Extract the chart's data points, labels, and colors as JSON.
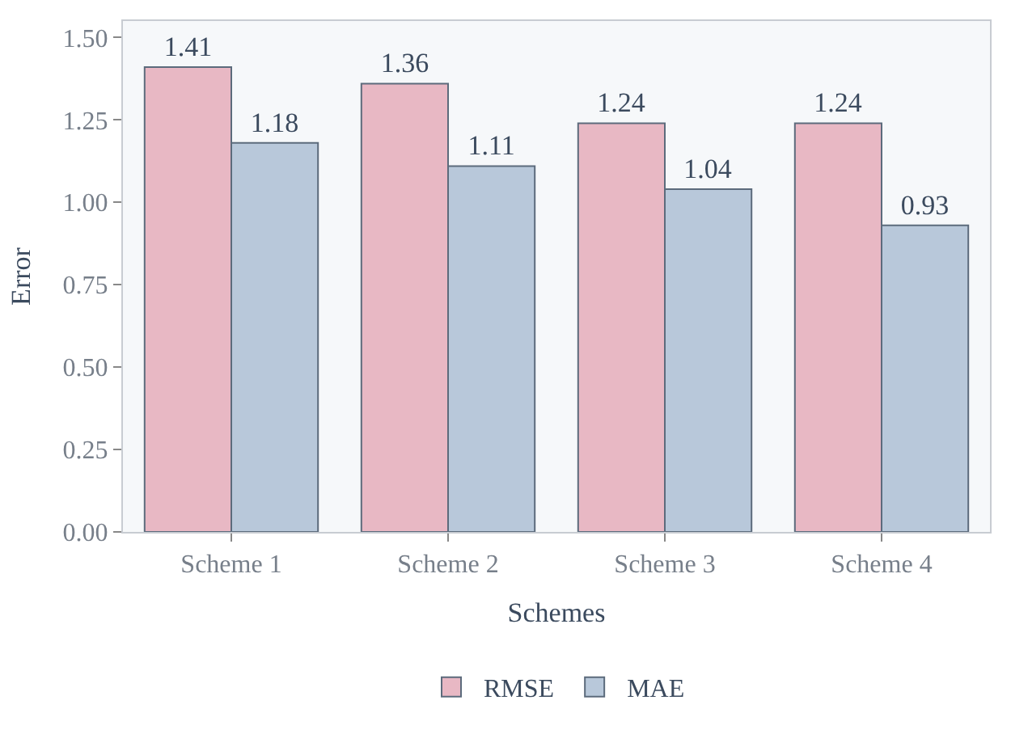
{
  "chart_data": {
    "type": "bar",
    "xlabel": "Schemes",
    "ylabel": "Error",
    "categories": [
      "Scheme 1",
      "Scheme 2",
      "Scheme 3",
      "Scheme 4"
    ],
    "series": [
      {
        "name": "RMSE",
        "color": "#e8b8c4",
        "values": [
          1.41,
          1.36,
          1.24,
          1.24
        ]
      },
      {
        "name": "MAE",
        "color": "#b8c8da",
        "values": [
          1.18,
          1.11,
          1.04,
          0.93
        ]
      }
    ],
    "ylim": [
      0,
      1.55
    ],
    "yticks": [
      {
        "value": 0,
        "label": "0.00"
      },
      {
        "value": 0.25,
        "label": "0.25"
      },
      {
        "value": 0.5,
        "label": "0.50"
      },
      {
        "value": 0.75,
        "label": "0.75"
      },
      {
        "value": 1,
        "label": "1.00"
      },
      {
        "value": 1.25,
        "label": "1.25"
      },
      {
        "value": 1.5,
        "label": "1.50"
      }
    ],
    "data_labels": true,
    "legend": "bottom",
    "grid": false
  }
}
